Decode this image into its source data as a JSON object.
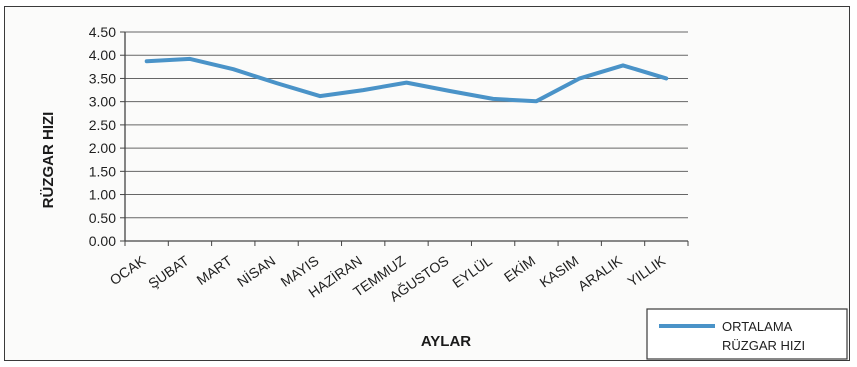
{
  "chart_data": {
    "type": "line",
    "categories": [
      "OCAK",
      "ŞUBAT",
      "MART",
      "NİSAN",
      "MAYIS",
      "HAZİRAN",
      "TEMMUZ",
      "AĞUSTOS",
      "EYLÜL",
      "EKİM",
      "KASIM",
      "ARALIK",
      "YILLIK"
    ],
    "series": [
      {
        "name_lines": [
          "ORTALAMA",
          "RÜZGAR HIZI"
        ],
        "values": [
          3.87,
          3.92,
          3.7,
          3.4,
          3.12,
          3.25,
          3.41,
          3.23,
          3.06,
          3.01,
          3.5,
          3.78,
          3.5
        ],
        "color": "#4a93c8"
      }
    ],
    "xlabel": "AYLAR",
    "ylabel": "RÜZGAR HIZI",
    "ylim": [
      0,
      4.5
    ],
    "yticks": [
      "0.00",
      "0.50",
      "1.00",
      "1.50",
      "2.00",
      "2.50",
      "3.00",
      "3.50",
      "4.00",
      "4.50"
    ],
    "grid": true,
    "legend_position": "bottom-right"
  }
}
